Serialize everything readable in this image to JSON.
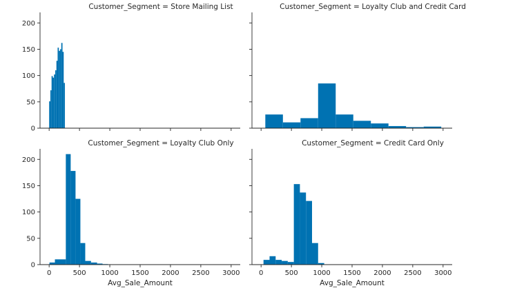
{
  "chart_data": [
    {
      "type": "bar",
      "title": "Customer_Segment = Store Mailing List",
      "xlabel": "",
      "ylabel": "",
      "xlim": [
        -150,
        3150
      ],
      "ylim": [
        0,
        220
      ],
      "xticks": [
        0,
        500,
        1000,
        1500,
        2000,
        2500,
        3000
      ],
      "yticks": [
        0,
        50,
        100,
        150,
        200
      ],
      "show_xtick_labels": false,
      "show_ytick_labels": true,
      "color": "#0072b2",
      "bins": [
        {
          "x0": 0,
          "x1": 20,
          "count": 51
        },
        {
          "x0": 20,
          "x1": 40,
          "count": 72
        },
        {
          "x0": 40,
          "x1": 60,
          "count": 99
        },
        {
          "x0": 60,
          "x1": 80,
          "count": 96
        },
        {
          "x0": 80,
          "x1": 100,
          "count": 102
        },
        {
          "x0": 100,
          "x1": 120,
          "count": 110
        },
        {
          "x0": 120,
          "x1": 140,
          "count": 128
        },
        {
          "x0": 140,
          "x1": 160,
          "count": 153
        },
        {
          "x0": 160,
          "x1": 180,
          "count": 147
        },
        {
          "x0": 180,
          "x1": 200,
          "count": 150
        },
        {
          "x0": 200,
          "x1": 220,
          "count": 162
        },
        {
          "x0": 220,
          "x1": 240,
          "count": 145
        },
        {
          "x0": 240,
          "x1": 260,
          "count": 86
        }
      ]
    },
    {
      "type": "bar",
      "title": "Customer_Segment = Loyalty Club and Credit Card",
      "xlabel": "",
      "ylabel": "",
      "xlim": [
        -150,
        3150
      ],
      "ylim": [
        0,
        220
      ],
      "xticks": [
        0,
        500,
        1000,
        1500,
        2000,
        2500,
        3000
      ],
      "yticks": [
        0,
        50,
        100,
        150,
        200
      ],
      "show_xtick_labels": false,
      "show_ytick_labels": false,
      "color": "#0072b2",
      "bins": [
        {
          "x0": 70,
          "x1": 360,
          "count": 26
        },
        {
          "x0": 360,
          "x1": 650,
          "count": 11
        },
        {
          "x0": 650,
          "x1": 940,
          "count": 19
        },
        {
          "x0": 940,
          "x1": 1230,
          "count": 85
        },
        {
          "x0": 1230,
          "x1": 1520,
          "count": 26
        },
        {
          "x0": 1520,
          "x1": 1810,
          "count": 14
        },
        {
          "x0": 1810,
          "x1": 2100,
          "count": 9
        },
        {
          "x0": 2100,
          "x1": 2390,
          "count": 4
        },
        {
          "x0": 2390,
          "x1": 2680,
          "count": 2
        },
        {
          "x0": 2680,
          "x1": 2970,
          "count": 3
        }
      ]
    },
    {
      "type": "bar",
      "title": "Customer_Segment = Loyalty Club Only",
      "xlabel": "Avg_Sale_Amount",
      "ylabel": "",
      "xlim": [
        -150,
        3150
      ],
      "ylim": [
        0,
        220
      ],
      "xticks": [
        0,
        500,
        1000,
        1500,
        2000,
        2500,
        3000
      ],
      "yticks": [
        0,
        50,
        100,
        150,
        200
      ],
      "show_xtick_labels": true,
      "show_ytick_labels": true,
      "color": "#0072b2",
      "bins": [
        {
          "x0": 5,
          "x1": 95,
          "count": 4
        },
        {
          "x0": 95,
          "x1": 275,
          "count": 10
        },
        {
          "x0": 275,
          "x1": 355,
          "count": 210
        },
        {
          "x0": 355,
          "x1": 435,
          "count": 178
        },
        {
          "x0": 435,
          "x1": 515,
          "count": 125
        },
        {
          "x0": 515,
          "x1": 595,
          "count": 41
        },
        {
          "x0": 595,
          "x1": 690,
          "count": 7
        },
        {
          "x0": 690,
          "x1": 790,
          "count": 4
        },
        {
          "x0": 790,
          "x1": 880,
          "count": 2
        },
        {
          "x0": 880,
          "x1": 970,
          "count": 1
        }
      ]
    },
    {
      "type": "bar",
      "title": "Customer_Segment = Credit Card Only",
      "xlabel": "Avg_Sale_Amount",
      "ylabel": "",
      "xlim": [
        -150,
        3150
      ],
      "ylim": [
        0,
        220
      ],
      "xticks": [
        0,
        500,
        1000,
        1500,
        2000,
        2500,
        3000
      ],
      "yticks": [
        0,
        50,
        100,
        150,
        200
      ],
      "show_xtick_labels": true,
      "show_ytick_labels": false,
      "color": "#0072b2",
      "bins": [
        {
          "x0": 40,
          "x1": 140,
          "count": 9
        },
        {
          "x0": 140,
          "x1": 240,
          "count": 16
        },
        {
          "x0": 240,
          "x1": 340,
          "count": 9
        },
        {
          "x0": 340,
          "x1": 440,
          "count": 7
        },
        {
          "x0": 440,
          "x1": 540,
          "count": 5
        },
        {
          "x0": 540,
          "x1": 640,
          "count": 153
        },
        {
          "x0": 640,
          "x1": 740,
          "count": 137
        },
        {
          "x0": 740,
          "x1": 840,
          "count": 121
        },
        {
          "x0": 840,
          "x1": 940,
          "count": 41
        },
        {
          "x0": 940,
          "x1": 1040,
          "count": 3
        }
      ]
    }
  ]
}
